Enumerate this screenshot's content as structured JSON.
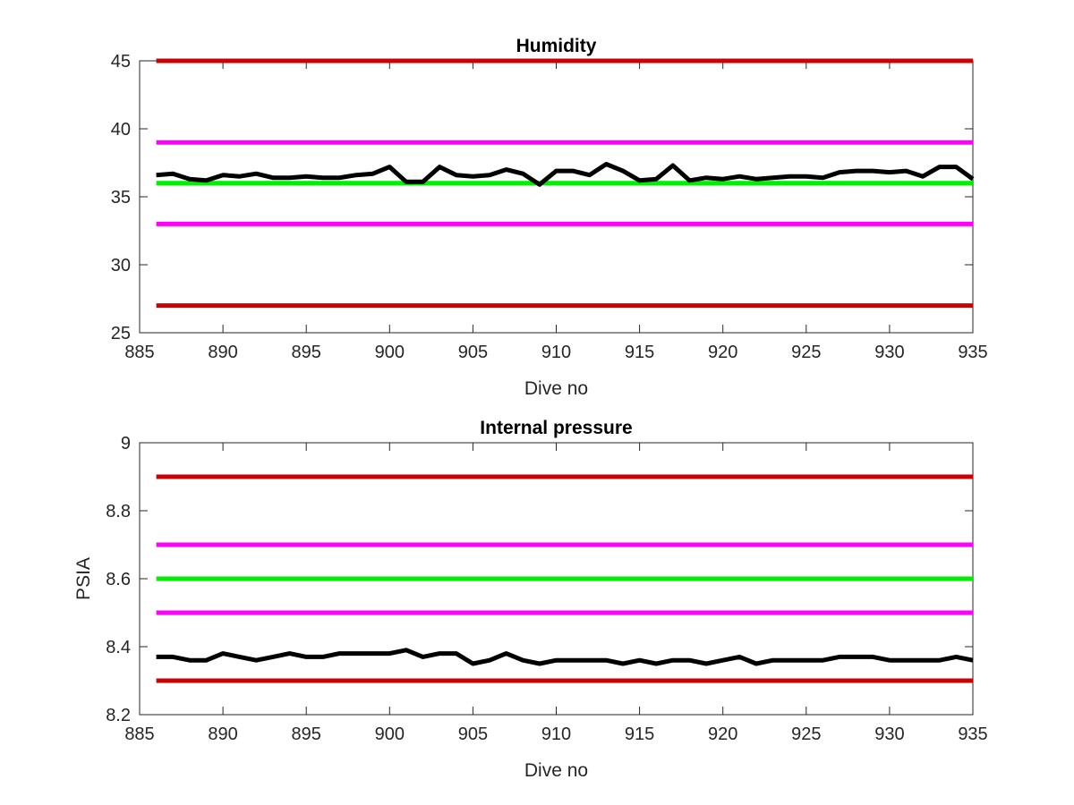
{
  "chart_data": [
    {
      "type": "line",
      "title": "Humidity",
      "xlabel": "Dive no",
      "ylabel": "",
      "xlim": [
        885,
        935
      ],
      "ylim": [
        25,
        45
      ],
      "xticks": [
        "885",
        "890",
        "895",
        "900",
        "905",
        "910",
        "915",
        "920",
        "925",
        "930",
        "935"
      ],
      "yticks": [
        "25",
        "30",
        "35",
        "40",
        "45"
      ],
      "grid": false,
      "reference_lines": [
        {
          "y": 45,
          "color": "#cc0000"
        },
        {
          "y": 39,
          "color": "#ff00ff"
        },
        {
          "y": 36,
          "color": "#00ee00"
        },
        {
          "y": 33,
          "color": "#ff00ff"
        },
        {
          "y": 27,
          "color": "#cc0000"
        }
      ],
      "series": [
        {
          "color": "#000000",
          "x": [
            886,
            887,
            888,
            889,
            890,
            891,
            892,
            893,
            894,
            895,
            896,
            897,
            898,
            899,
            900,
            901,
            902,
            903,
            904,
            905,
            906,
            907,
            908,
            909,
            910,
            911,
            912,
            913,
            914,
            915,
            916,
            917,
            918,
            919,
            920,
            921,
            922,
            923,
            924,
            925,
            926,
            927,
            928,
            929,
            930,
            931,
            932,
            933,
            934,
            935
          ],
          "values": [
            36.6,
            36.7,
            36.3,
            36.2,
            36.6,
            36.5,
            36.7,
            36.4,
            36.4,
            36.5,
            36.4,
            36.4,
            36.6,
            36.7,
            37.2,
            36.1,
            36.1,
            37.2,
            36.6,
            36.5,
            36.6,
            37.0,
            36.7,
            35.9,
            36.9,
            36.9,
            36.6,
            37.4,
            36.9,
            36.2,
            36.3,
            37.3,
            36.2,
            36.4,
            36.3,
            36.5,
            36.3,
            36.4,
            36.5,
            36.5,
            36.4,
            36.8,
            36.9,
            36.9,
            36.8,
            36.9,
            36.5,
            37.2,
            37.2,
            36.3
          ]
        }
      ]
    },
    {
      "type": "line",
      "title": "Internal pressure",
      "xlabel": "Dive no",
      "ylabel": "PSIA",
      "xlim": [
        885,
        935
      ],
      "ylim": [
        8.2,
        9
      ],
      "xticks": [
        "885",
        "890",
        "895",
        "900",
        "905",
        "910",
        "915",
        "920",
        "925",
        "930",
        "935"
      ],
      "yticks": [
        "8.2",
        "8.4",
        "8.6",
        "8.8",
        "9"
      ],
      "grid": false,
      "reference_lines": [
        {
          "y": 8.9,
          "color": "#cc0000"
        },
        {
          "y": 8.7,
          "color": "#ff00ff"
        },
        {
          "y": 8.6,
          "color": "#00ee00"
        },
        {
          "y": 8.5,
          "color": "#ff00ff"
        },
        {
          "y": 8.3,
          "color": "#cc0000"
        }
      ],
      "series": [
        {
          "color": "#000000",
          "x": [
            886,
            887,
            888,
            889,
            890,
            891,
            892,
            893,
            894,
            895,
            896,
            897,
            898,
            899,
            900,
            901,
            902,
            903,
            904,
            905,
            906,
            907,
            908,
            909,
            910,
            911,
            912,
            913,
            914,
            915,
            916,
            917,
            918,
            919,
            920,
            921,
            922,
            923,
            924,
            925,
            926,
            927,
            928,
            929,
            930,
            931,
            932,
            933,
            934,
            935
          ],
          "values": [
            8.37,
            8.37,
            8.36,
            8.36,
            8.38,
            8.37,
            8.36,
            8.37,
            8.38,
            8.37,
            8.37,
            8.38,
            8.38,
            8.38,
            8.38,
            8.39,
            8.37,
            8.38,
            8.38,
            8.35,
            8.36,
            8.38,
            8.36,
            8.35,
            8.36,
            8.36,
            8.36,
            8.36,
            8.35,
            8.36,
            8.35,
            8.36,
            8.36,
            8.35,
            8.36,
            8.37,
            8.35,
            8.36,
            8.36,
            8.36,
            8.36,
            8.37,
            8.37,
            8.37,
            8.36,
            8.36,
            8.36,
            8.36,
            8.37,
            8.36
          ]
        }
      ]
    }
  ]
}
